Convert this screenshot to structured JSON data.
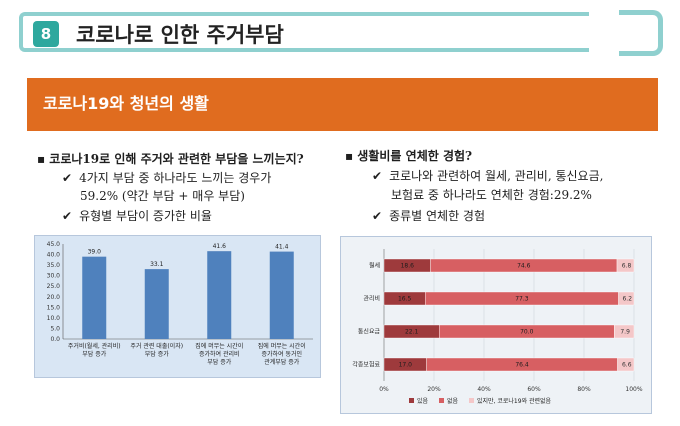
{
  "header": {
    "number": "8",
    "title": "코로나로 인한 주거부담"
  },
  "banner": {
    "title": "코로나19와 청년의 생활"
  },
  "left_text": {
    "heading": "▪ 코로나19로 인해 주거와 관련한 부담을 느끼는지?",
    "bullets": [
      {
        "line1": "4가지 부담 중 하나라도 느끼는 경우가",
        "line2": "59.2% (약간 부담 + 매우 부담)"
      },
      {
        "line1": "유형별 부담이 증가한 비율",
        "line2": ""
      }
    ],
    "check_glyph": "✔"
  },
  "right_text": {
    "heading": "▪ 생활비를 연체한 경험?",
    "bullets": [
      {
        "line1": "코로나와 관련하여 월세, 관리비, 통신요금,",
        "line2": "보험료 중 하나라도 연체한 경험:29.2%"
      },
      {
        "line1": "종류별 연체한 경험",
        "line2": ""
      }
    ],
    "check_glyph": "✔"
  },
  "chart_data": [
    {
      "type": "bar",
      "categories": [
        [
          "주거비(월세, 관리비)",
          "부담 증가"
        ],
        [
          "주거 관련 대출(이자)",
          "부담 증가"
        ],
        [
          "집에 머무는 시간이",
          "증가하여 관리비",
          "부담 증가"
        ],
        [
          "집에 머무는 시간이",
          "증가하여 동거인",
          "관계부담 증가"
        ]
      ],
      "values": [
        39.0,
        33.1,
        41.6,
        41.4
      ],
      "value_labels": [
        "39.0",
        "33.1",
        "41.6",
        "41.4"
      ],
      "ylim": [
        0,
        45
      ],
      "yticks": [
        "0.0",
        "5.0",
        "10.0",
        "15.0",
        "20.0",
        "25.0",
        "30.0",
        "35.0",
        "40.0",
        "45.0"
      ],
      "grid": false,
      "bar_color": "#4f81bd"
    },
    {
      "type": "bar",
      "orientation": "horizontal-stacked-100",
      "categories": [
        "월세",
        "관리비",
        "통신요금",
        "각종보험료"
      ],
      "series": [
        {
          "name": "있음",
          "values": [
            18.6,
            16.5,
            22.1,
            17.0
          ],
          "labels": [
            "18.6",
            "16.5",
            "22.1",
            "17.0"
          ],
          "color": "#9e3a3c"
        },
        {
          "name": "없음",
          "values": [
            74.6,
            77.3,
            70.0,
            76.4
          ],
          "labels": [
            "74.6",
            "77.3",
            "70.0",
            "76.4"
          ],
          "color": "#d75f62"
        },
        {
          "name": "있지만, 코로나19와 관련없음",
          "values": [
            6.8,
            6.2,
            7.9,
            6.6
          ],
          "labels": [
            "6.8",
            "6.2",
            "7.9",
            "6.6"
          ],
          "color": "#f4c7c8"
        }
      ],
      "xticks": [
        "0%",
        "20%",
        "40%",
        "60%",
        "80%",
        "100%"
      ],
      "legend_position": "bottom"
    }
  ]
}
